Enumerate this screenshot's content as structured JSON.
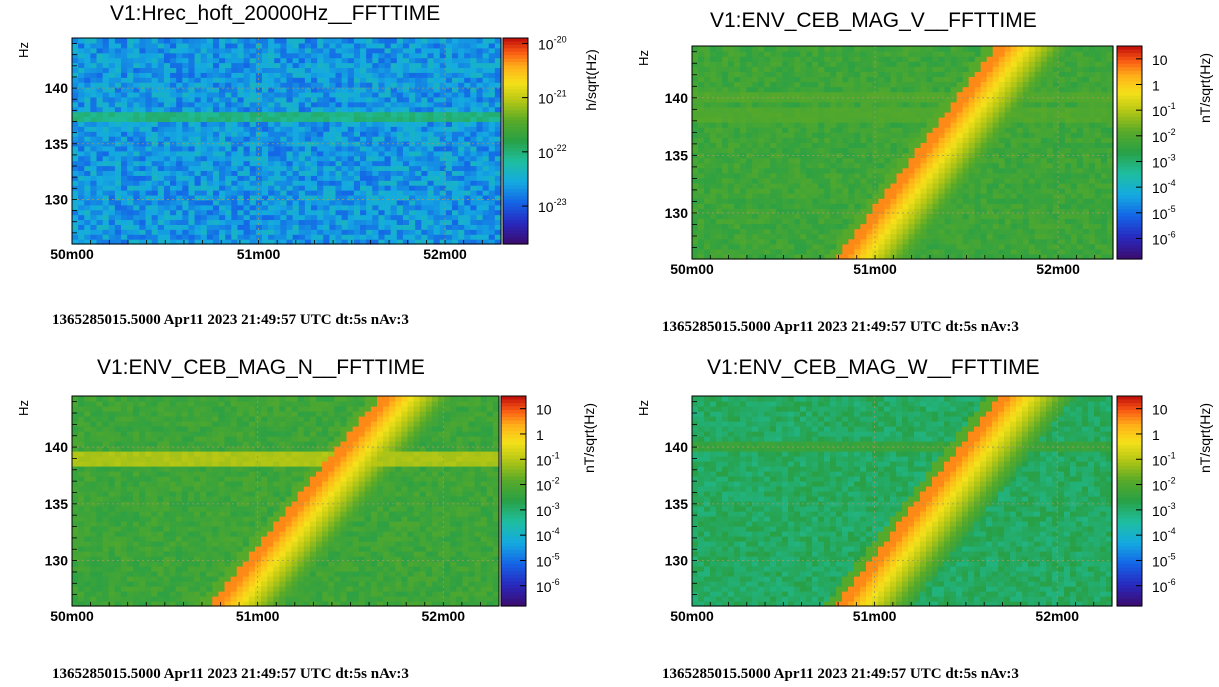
{
  "page": {
    "background": "#ffffff"
  },
  "chart_data": [
    {
      "type": "heatmap",
      "title": "V1:Hrec_hoft_20000Hz__FFTTIME",
      "xlabel": "",
      "ylabel": "Hz",
      "zlabel": "h/sqrt(Hz)",
      "x_ticks": [
        "50m00",
        "51m00",
        "52m00"
      ],
      "xlim_minutes": [
        50.0,
        52.3
      ],
      "y_ticks": [
        130,
        135,
        140
      ],
      "ylim": [
        126,
        144.5
      ],
      "z_scale": "log",
      "z_ticks": [
        {
          "base": "10",
          "exp": "-20",
          "log": -20
        },
        {
          "base": "10",
          "exp": "-21",
          "log": -21
        },
        {
          "base": "10",
          "exp": "-22",
          "log": -22
        },
        {
          "base": "10",
          "exp": "-23",
          "log": -23
        }
      ],
      "zlim_log": [
        -23.7,
        -19.9
      ],
      "grid": true,
      "background_level_log": -22.65,
      "features": [
        {
          "kind": "line",
          "freq_hz": 137.5,
          "level_log": -22.05
        }
      ],
      "footer": "1365285015.5000 Apr11 2023 21:49:57 UTC dt:5s nAv:3"
    },
    {
      "type": "heatmap",
      "title": "V1:ENV_CEB_MAG_V__FFTTIME",
      "xlabel": "",
      "ylabel": "Hz",
      "zlabel": "nT/sqrt(Hz)",
      "x_ticks": [
        "50m00",
        "51m00",
        "52m00"
      ],
      "xlim_minutes": [
        50.0,
        52.3
      ],
      "y_ticks": [
        130,
        135,
        140
      ],
      "ylim": [
        126,
        144.5
      ],
      "z_scale": "log",
      "z_ticks": [
        {
          "base": "10",
          "exp": "",
          "log": 1
        },
        {
          "base": "1",
          "exp": "",
          "log": 0
        },
        {
          "base": "10",
          "exp": "-1",
          "log": -1
        },
        {
          "base": "10",
          "exp": "-2",
          "log": -2
        },
        {
          "base": "10",
          "exp": "-3",
          "log": -3
        },
        {
          "base": "10",
          "exp": "-4",
          "log": -4
        },
        {
          "base": "10",
          "exp": "-5",
          "log": -5
        },
        {
          "base": "10",
          "exp": "-6",
          "log": -6
        }
      ],
      "zlim_log": [
        -6.8,
        1.5
      ],
      "grid": true,
      "background_level_log": -2.3,
      "features": [
        {
          "kind": "line",
          "freq_hz": 140.0,
          "level_log": -2.0
        },
        {
          "kind": "line",
          "freq_hz": 138.5,
          "level_log": -2.0
        },
        {
          "kind": "chirp",
          "start_minute": 50.8,
          "start_freq_hz": 126,
          "end_minute": 51.68,
          "end_freq_hz": 144.5,
          "peak_log": 0.6
        }
      ],
      "footer": "1365285015.5000 Apr11 2023 21:49:57 UTC dt:5s nAv:3"
    },
    {
      "type": "heatmap",
      "title": "V1:ENV_CEB_MAG_N__FFTTIME",
      "xlabel": "",
      "ylabel": "Hz",
      "zlabel": "nT/sqrt(Hz)",
      "x_ticks": [
        "50m00",
        "51m00",
        "52m00"
      ],
      "xlim_minutes": [
        50.0,
        52.3
      ],
      "y_ticks": [
        130,
        135,
        140
      ],
      "ylim": [
        126,
        144.5
      ],
      "z_scale": "log",
      "z_ticks": [
        {
          "base": "10",
          "exp": "",
          "log": 1
        },
        {
          "base": "1",
          "exp": "",
          "log": 0
        },
        {
          "base": "10",
          "exp": "-1",
          "log": -1
        },
        {
          "base": "10",
          "exp": "-2",
          "log": -2
        },
        {
          "base": "10",
          "exp": "-3",
          "log": -3
        },
        {
          "base": "10",
          "exp": "-4",
          "log": -4
        },
        {
          "base": "10",
          "exp": "-5",
          "log": -5
        },
        {
          "base": "10",
          "exp": "-6",
          "log": -6
        }
      ],
      "zlim_log": [
        -6.8,
        1.5
      ],
      "grid": true,
      "background_level_log": -2.3,
      "features": [
        {
          "kind": "line",
          "freq_hz": 139.0,
          "level_log": -1.1
        },
        {
          "kind": "chirp",
          "start_minute": 50.75,
          "start_freq_hz": 126,
          "end_minute": 51.68,
          "end_freq_hz": 144.5,
          "peak_log": 0.6
        }
      ],
      "footer": "1365285015.5000 Apr11 2023 21:49:57 UTC dt:5s nAv:3"
    },
    {
      "type": "heatmap",
      "title": "V1:ENV_CEB_MAG_W__FFTTIME",
      "xlabel": "",
      "ylabel": "Hz",
      "zlabel": "nT/sqrt(Hz)",
      "x_ticks": [
        "50m00",
        "51m00",
        "52m00"
      ],
      "xlim_minutes": [
        50.0,
        52.3
      ],
      "y_ticks": [
        130,
        135,
        140
      ],
      "ylim": [
        126,
        144.5
      ],
      "z_scale": "log",
      "z_ticks": [
        {
          "base": "10",
          "exp": "",
          "log": 1
        },
        {
          "base": "1",
          "exp": "",
          "log": 0
        },
        {
          "base": "10",
          "exp": "-1",
          "log": -1
        },
        {
          "base": "10",
          "exp": "-2",
          "log": -2
        },
        {
          "base": "10",
          "exp": "-3",
          "log": -3
        },
        {
          "base": "10",
          "exp": "-4",
          "log": -4
        },
        {
          "base": "10",
          "exp": "-5",
          "log": -5
        },
        {
          "base": "10",
          "exp": "-6",
          "log": -6
        }
      ],
      "zlim_log": [
        -6.8,
        1.5
      ],
      "grid": true,
      "background_level_log": -2.9,
      "features": [
        {
          "kind": "line",
          "freq_hz": 140.0,
          "level_log": -2.4
        },
        {
          "kind": "chirp",
          "start_minute": 50.8,
          "start_freq_hz": 126,
          "end_minute": 51.7,
          "end_freq_hz": 144.5,
          "peak_log": 0.6
        }
      ],
      "footer": "1365285015.5000 Apr11 2023 21:49:57 UTC dt:5s nAv:3"
    }
  ]
}
